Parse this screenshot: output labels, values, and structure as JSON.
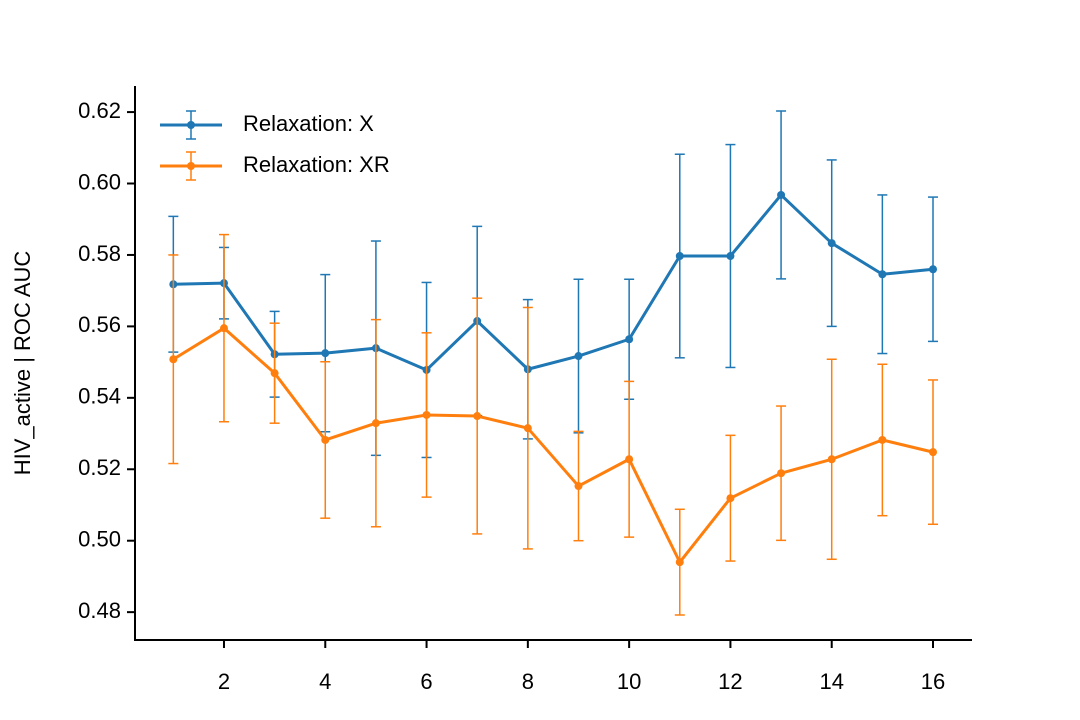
{
  "chart_data": {
    "type": "line",
    "y_label": "HIV_active | ROC AUC",
    "x": [
      1,
      2,
      3,
      4,
      5,
      6,
      7,
      8,
      9,
      10,
      11,
      12,
      13,
      14,
      15,
      16
    ],
    "series": [
      {
        "name": "Relaxation: X",
        "color": "#1f77b4",
        "values": [
          0.5718,
          0.5721,
          0.5522,
          0.5525,
          0.5539,
          0.5478,
          0.5615,
          0.548,
          0.5517,
          0.5564,
          0.5797,
          0.5797,
          0.5968,
          0.5833,
          0.5746,
          0.576
        ],
        "errors": [
          0.019,
          0.01,
          0.012,
          0.022,
          0.03,
          0.0245,
          0.0265,
          0.0195,
          0.0215,
          0.0168,
          0.0285,
          0.0312,
          0.0235,
          0.0233,
          0.0222,
          0.0202
        ]
      },
      {
        "name": "Relaxation: XR",
        "color": "#ff7f0e",
        "values": [
          0.5508,
          0.5595,
          0.5469,
          0.5282,
          0.5329,
          0.5352,
          0.5349,
          0.5315,
          0.5153,
          0.5228,
          0.494,
          0.5119,
          0.5189,
          0.5228,
          0.5282,
          0.5248
        ],
        "errors": [
          0.0292,
          0.0262,
          0.014,
          0.0219,
          0.029,
          0.023,
          0.033,
          0.0338,
          0.0153,
          0.0218,
          0.0148,
          0.0176,
          0.0188,
          0.028,
          0.0212,
          0.0202
        ]
      }
    ],
    "xlim": [
      0.243,
      16.77
    ],
    "xticks": [
      2,
      4,
      6,
      8,
      10,
      12,
      14,
      16
    ],
    "ylim": [
      0.4722,
      0.6273
    ],
    "yticks": [
      0.48,
      {
        "value": 0.5,
        "label": "0.50"
      },
      0.52,
      0.54,
      0.56,
      0.58,
      {
        "value": 0.6,
        "label": "0.60"
      },
      0.62
    ],
    "legend": "upper-left"
  }
}
